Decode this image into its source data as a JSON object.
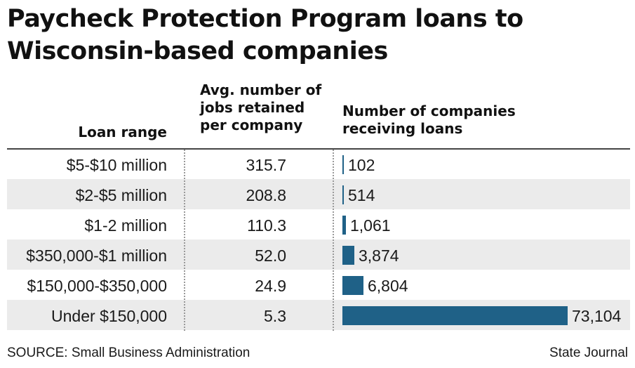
{
  "title": "Paycheck Protection Program loans to Wisconsin-based companies",
  "headers": {
    "range": "Loan range",
    "jobs": "Avg. number of jobs retained per company",
    "count": "Number of companies receiving loans"
  },
  "footer": {
    "source": "SOURCE: Small Business Administration",
    "credit": "State Journal"
  },
  "colors": {
    "bar": "#1f6187",
    "shade": "#ebebeb"
  },
  "chart_data": {
    "type": "table",
    "title": "Paycheck Protection Program loans to Wisconsin-based companies",
    "columns": [
      "Loan range",
      "Avg. number of jobs retained per company",
      "Number of companies receiving loans"
    ],
    "categories": [
      "$5-$10 million",
      "$2-$5 million",
      "$1-2 million",
      "$350,000-$1 million",
      "$150,000-$350,000",
      "Under $150,000"
    ],
    "jobs_retained": [
      "315.7",
      "208.8",
      "110.3",
      "52.0",
      "24.9",
      "5.3"
    ],
    "companies_labels": [
      "102",
      "514",
      "1,061",
      "3,874",
      "6,804",
      "73,104"
    ],
    "companies_values": [
      102,
      514,
      1061,
      3874,
      6804,
      73104
    ],
    "bar_max": 73104
  }
}
